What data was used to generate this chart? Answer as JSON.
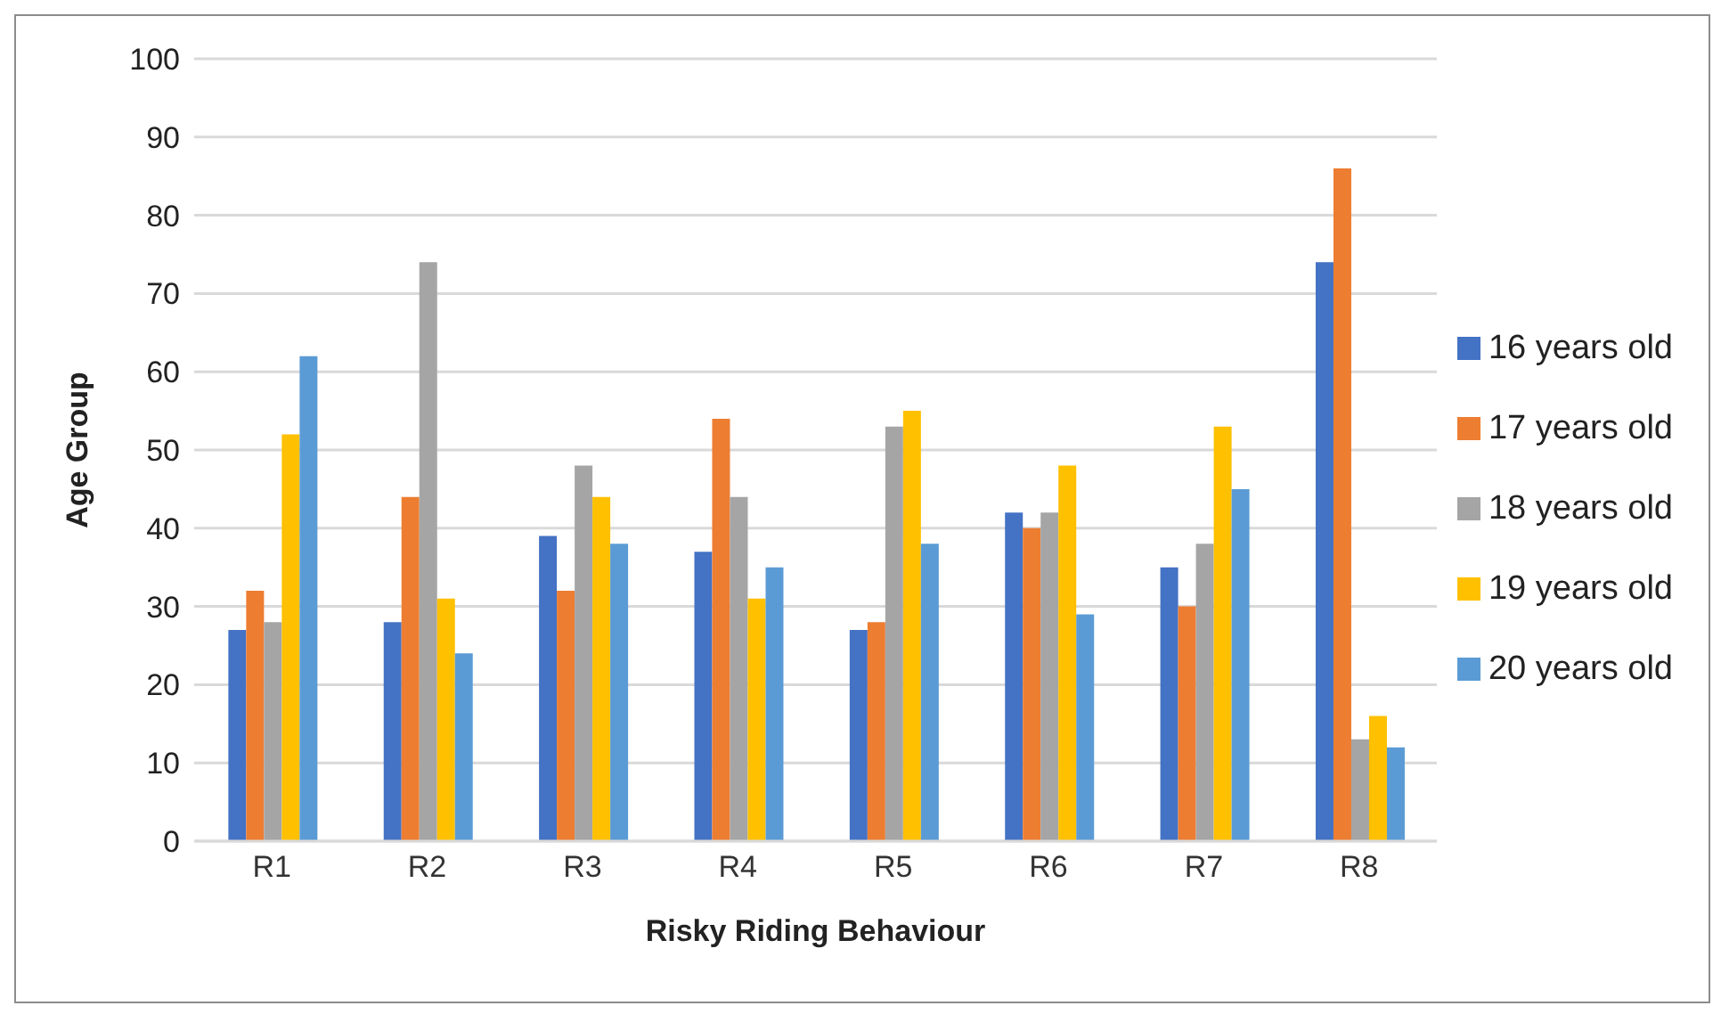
{
  "chart_data": {
    "type": "bar",
    "xlabel": "Risky Riding Behaviour",
    "ylabel": "Age Group",
    "categories": [
      "R1",
      "R2",
      "R3",
      "R4",
      "R5",
      "R6",
      "R7",
      "R8"
    ],
    "series": [
      {
        "name": "16 years old",
        "color": "#4472c4",
        "values": [
          27,
          28,
          39,
          37,
          27,
          42,
          35,
          74
        ]
      },
      {
        "name": "17 years old",
        "color": "#ed7d31",
        "values": [
          32,
          44,
          32,
          54,
          28,
          40,
          30,
          86
        ]
      },
      {
        "name": "18 years old",
        "color": "#a5a5a5",
        "values": [
          28,
          74,
          48,
          44,
          53,
          42,
          38,
          13
        ]
      },
      {
        "name": "19 years old",
        "color": "#ffc000",
        "values": [
          52,
          31,
          44,
          31,
          55,
          48,
          53,
          16
        ]
      },
      {
        "name": "20 years old",
        "color": "#5b9bd5",
        "values": [
          62,
          24,
          38,
          35,
          38,
          29,
          45,
          12
        ]
      }
    ],
    "ylim": [
      0,
      100
    ],
    "yticks": [
      0,
      10,
      20,
      30,
      40,
      50,
      60,
      70,
      80,
      90,
      100
    ],
    "grid": "y",
    "legend": "right"
  }
}
